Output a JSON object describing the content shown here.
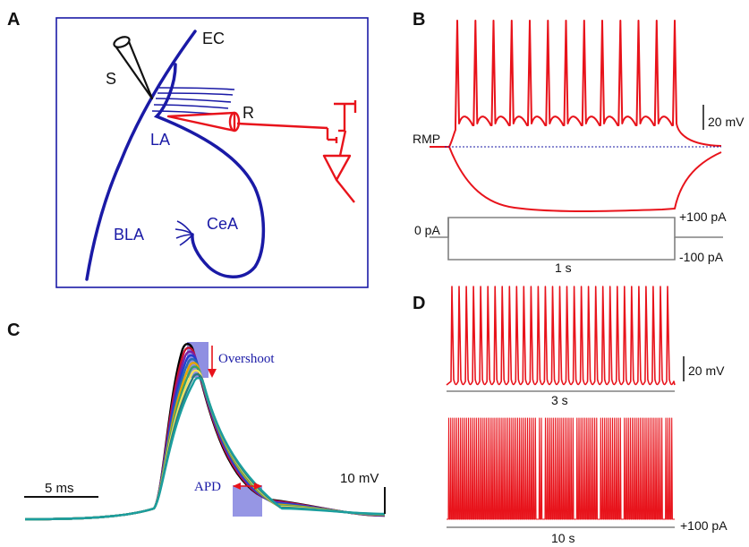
{
  "panels": {
    "a": {
      "letter": "A",
      "labels": {
        "s": "S",
        "ec": "EC",
        "r": "R",
        "la": "LA",
        "bla": "BLA",
        "cea": "CeA"
      }
    },
    "b": {
      "letter": "B",
      "rmp": "RMP",
      "scale_v": "20 mV",
      "current_plus": "+100 pA",
      "current_zero": "0 pA",
      "current_minus": "-100 pA",
      "time": "1 s"
    },
    "c": {
      "letter": "C",
      "overshoot": "Overshoot",
      "apd": "APD",
      "scale_t": "5 ms",
      "scale_v": "10 mV"
    },
    "d": {
      "letter": "D",
      "scale_v": "20 mV",
      "time_top": "3 s",
      "time_bottom": "10 s",
      "current": "+100 pA"
    }
  },
  "colors": {
    "schematic": "#1a1aa6",
    "recording": "#e8131b",
    "baseline": "#808080",
    "highlight": "#6a6ad8",
    "traces": [
      "#000000",
      "#c8102e",
      "#7a1fa2",
      "#1f3fd1",
      "#2b6cb0",
      "#e6a600",
      "#38a169",
      "#f6e05e",
      "#2c7a7b",
      "#1b9e9e"
    ]
  }
}
